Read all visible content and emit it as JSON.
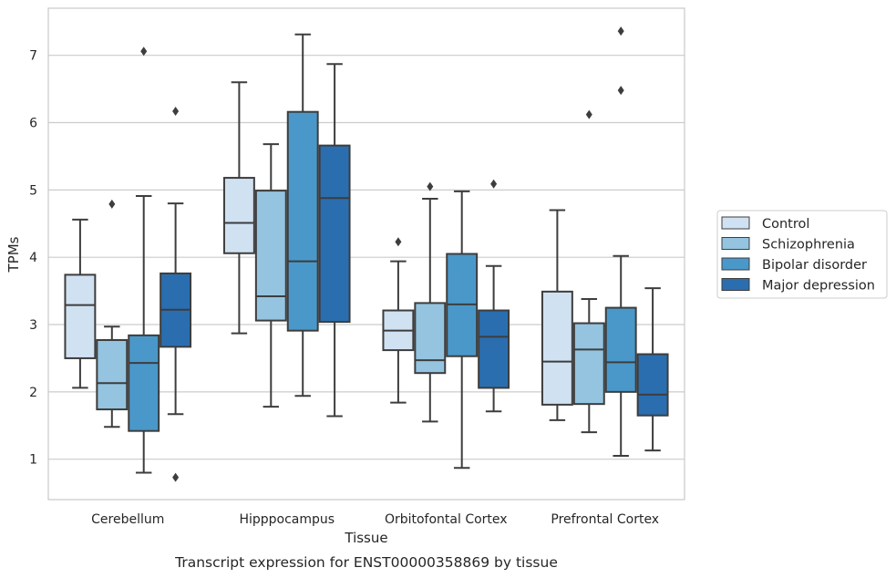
{
  "chart_data": {
    "type": "box",
    "caption": "Transcript expression for ENST00000358869 by tissue",
    "xlabel": "Tissue",
    "ylabel": "TPMs",
    "ylim": [
      0.4,
      7.7
    ],
    "yticks": [
      1,
      2,
      3,
      4,
      5,
      6,
      7
    ],
    "grid": "horizontal",
    "legend_position": "right",
    "categories": [
      "Cerebellum",
      "Hipppocampus",
      "Orbitofontal Cortex",
      "Prefrontal Cortex"
    ],
    "series": [
      {
        "name": "Control",
        "color": "#d0e1f2",
        "boxes": [
          {
            "whislo": 2.06,
            "q1": 2.5,
            "med": 3.29,
            "q3": 3.74,
            "whishi": 4.56,
            "fliers": []
          },
          {
            "whislo": 2.87,
            "q1": 4.06,
            "med": 4.51,
            "q3": 5.18,
            "whishi": 6.6,
            "fliers": []
          },
          {
            "whislo": 1.84,
            "q1": 2.62,
            "med": 2.91,
            "q3": 3.21,
            "whishi": 3.94,
            "fliers": [
              4.23
            ]
          },
          {
            "whislo": 1.58,
            "q1": 1.81,
            "med": 2.45,
            "q3": 3.49,
            "whishi": 4.7,
            "fliers": []
          }
        ]
      },
      {
        "name": "Schizophrenia",
        "color": "#94c4df",
        "boxes": [
          {
            "whislo": 1.48,
            "q1": 1.74,
            "med": 2.13,
            "q3": 2.77,
            "whishi": 2.97,
            "fliers": [
              4.79
            ]
          },
          {
            "whislo": 1.78,
            "q1": 3.06,
            "med": 3.42,
            "q3": 4.99,
            "whishi": 5.68,
            "fliers": []
          },
          {
            "whislo": 1.56,
            "q1": 2.28,
            "med": 2.47,
            "q3": 3.32,
            "whishi": 4.87,
            "fliers": [
              5.05
            ]
          },
          {
            "whislo": 1.4,
            "q1": 1.82,
            "med": 2.63,
            "q3": 3.02,
            "whishi": 3.38,
            "fliers": [
              6.12
            ]
          }
        ]
      },
      {
        "name": "Bipolar disorder",
        "color": "#4a98c9",
        "boxes": [
          {
            "whislo": 0.8,
            "q1": 1.42,
            "med": 2.43,
            "q3": 2.84,
            "whishi": 4.91,
            "fliers": [
              7.06
            ]
          },
          {
            "whislo": 1.94,
            "q1": 2.91,
            "med": 3.94,
            "q3": 6.16,
            "whishi": 7.31,
            "fliers": []
          },
          {
            "whislo": 0.87,
            "q1": 2.53,
            "med": 3.3,
            "q3": 4.05,
            "whishi": 4.98,
            "fliers": []
          },
          {
            "whislo": 1.05,
            "q1": 2.0,
            "med": 2.44,
            "q3": 3.25,
            "whishi": 4.02,
            "fliers": [
              6.48,
              7.36
            ]
          }
        ]
      },
      {
        "name": "Major depression",
        "color": "#2a6eb0",
        "boxes": [
          {
            "whislo": 1.67,
            "q1": 2.67,
            "med": 3.22,
            "q3": 3.76,
            "whishi": 4.8,
            "fliers": [
              0.73,
              6.17
            ]
          },
          {
            "whislo": 1.64,
            "q1": 3.04,
            "med": 4.88,
            "q3": 5.66,
            "whishi": 6.87,
            "fliers": []
          },
          {
            "whislo": 1.71,
            "q1": 2.06,
            "med": 2.82,
            "q3": 3.21,
            "whishi": 3.87,
            "fliers": [
              5.09
            ]
          },
          {
            "whislo": 1.13,
            "q1": 1.65,
            "med": 1.96,
            "q3": 2.56,
            "whishi": 3.54,
            "fliers": []
          }
        ]
      }
    ]
  }
}
